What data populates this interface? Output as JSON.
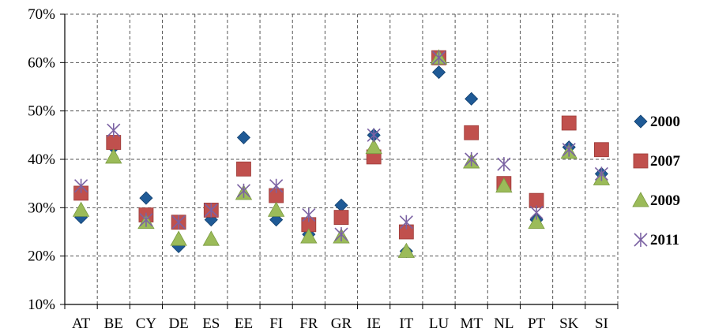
{
  "chart_data": {
    "type": "scatter",
    "title": "",
    "xlabel": "",
    "ylabel": "",
    "categories": [
      "AT",
      "BE",
      "CY",
      "DE",
      "ES",
      "EE",
      "FI",
      "FR",
      "GR",
      "IE",
      "IT",
      "LU",
      "MT",
      "NL",
      "PT",
      "SK",
      "SI"
    ],
    "y_ticks": [
      "10%",
      "20%",
      "30%",
      "40%",
      "50%",
      "60%",
      "70%"
    ],
    "ylim": [
      10,
      70
    ],
    "y_unit": "%",
    "grid": "dashed",
    "legend_position": "right",
    "series": [
      {
        "name": "2000",
        "marker": "diamond",
        "color": "#1F5A96",
        "values": [
          28,
          42.5,
          32,
          22,
          27.5,
          44.5,
          27.5,
          24.5,
          30.5,
          45,
          21,
          58,
          52.5,
          35,
          27.5,
          42.5,
          37
        ]
      },
      {
        "name": "2007",
        "marker": "square",
        "color": "#C0504D",
        "values": [
          33,
          43.5,
          28.5,
          27,
          29.5,
          38,
          32.5,
          26.5,
          28,
          40.5,
          25,
          61,
          45.5,
          35,
          31.5,
          47.5,
          42
        ]
      },
      {
        "name": "2009",
        "marker": "triangle",
        "color": "#9BBB59",
        "values": [
          29.5,
          40.5,
          27,
          23.5,
          23.5,
          33,
          29.5,
          24,
          24,
          42.5,
          21,
          61,
          39.5,
          34.5,
          27,
          41.5,
          36
        ]
      },
      {
        "name": "2011",
        "marker": "asterisk",
        "color": "#7B62A3",
        "values": [
          34.5,
          46,
          27.5,
          27,
          29.5,
          33.5,
          34.5,
          28.5,
          24.5,
          45,
          27,
          61,
          40,
          39,
          29,
          42,
          37
        ]
      }
    ]
  }
}
